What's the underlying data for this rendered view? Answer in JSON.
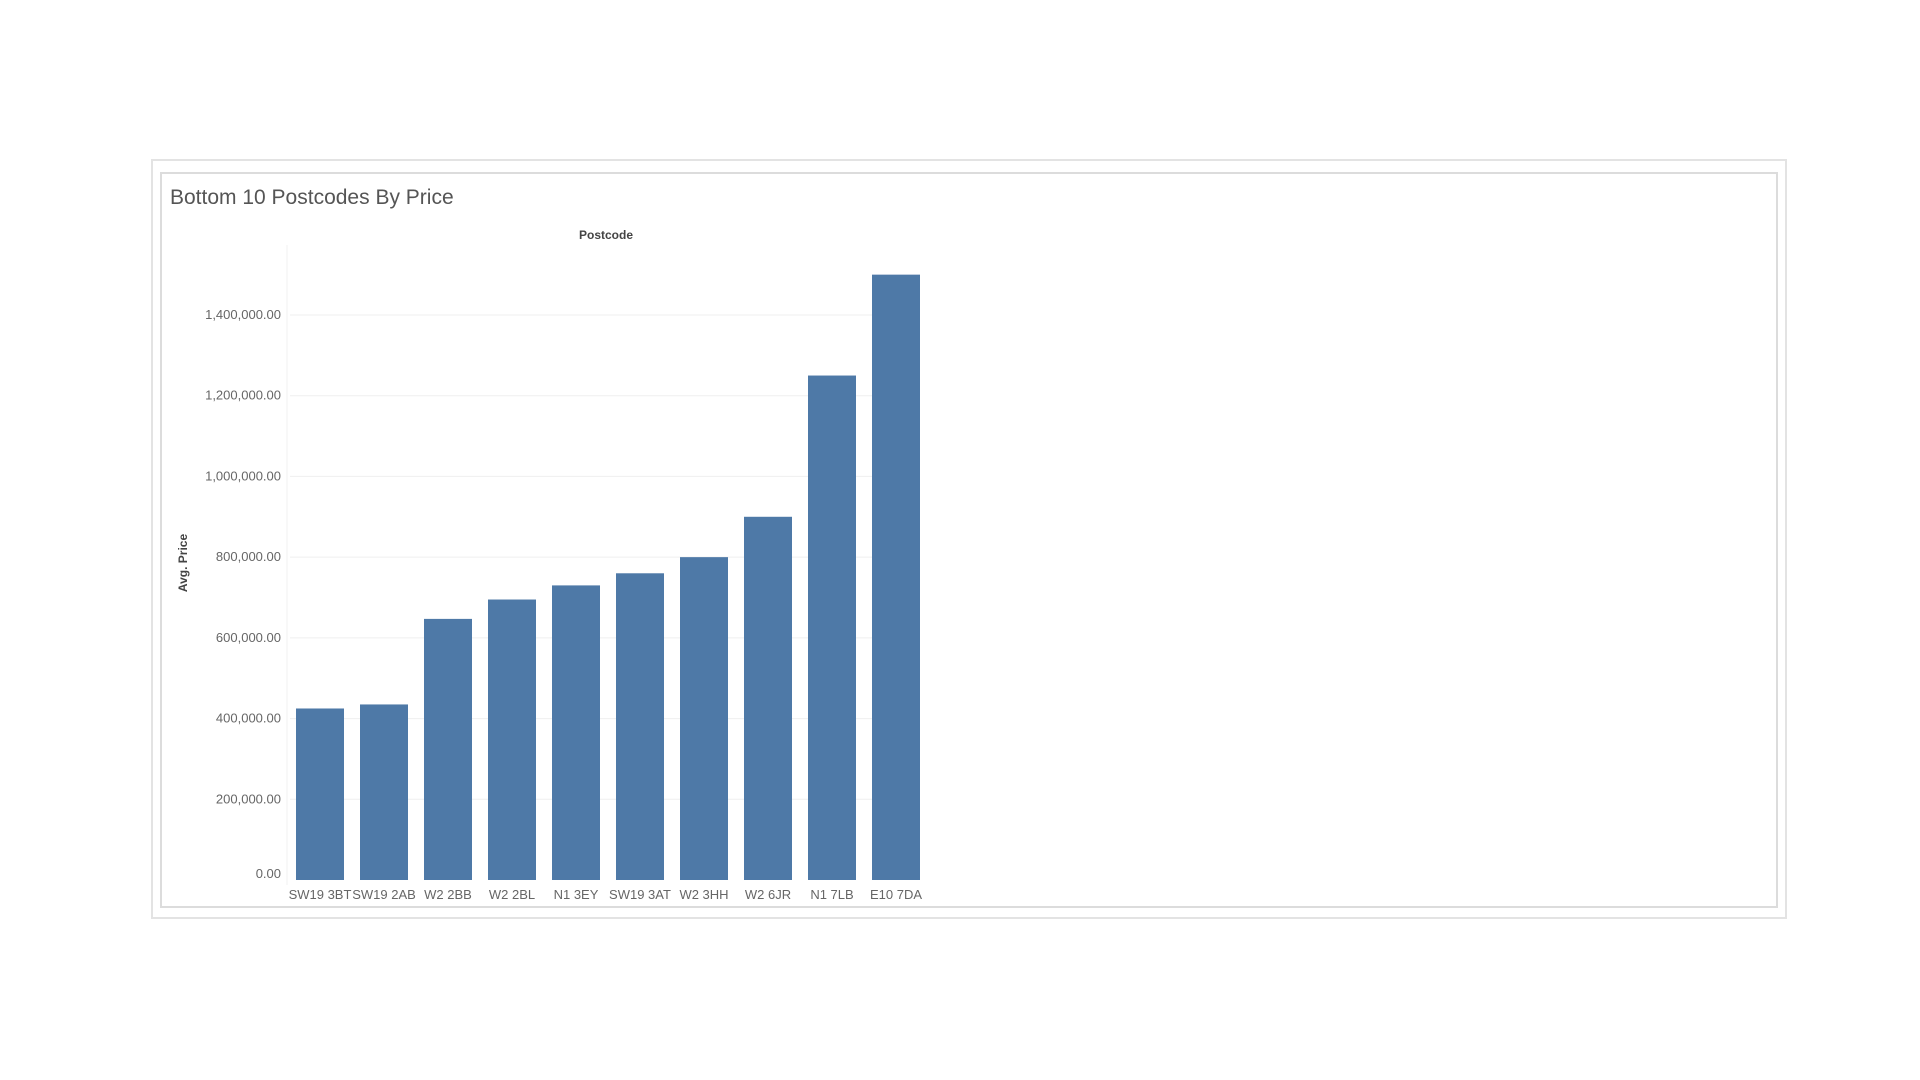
{
  "chart_data": {
    "type": "bar",
    "title": "Bottom 10 Postcodes By Price",
    "xlabel": "Postcode",
    "ylabel": "Avg. Price",
    "categories": [
      "SW19 3BT",
      "SW19 2AB",
      "W2 2BB",
      "W2 2BL",
      "N1 3EY",
      "SW19 3AT",
      "W2 3HH",
      "W2 6JR",
      "N1 7LB",
      "E10 7DA"
    ],
    "values": [
      425000,
      435000,
      647000,
      695000,
      730000,
      760000,
      800000,
      900000,
      1250000,
      1500000
    ],
    "ylim": [
      0,
      1500000
    ],
    "yticks": [
      0,
      200000,
      400000,
      600000,
      800000,
      1000000,
      1200000,
      1400000
    ],
    "ytick_labels": [
      "0.00",
      "200,000.00",
      "400,000.00",
      "600,000.00",
      "800,000.00",
      "1,000,000.00",
      "1,200,000.00",
      "1,400,000.00"
    ],
    "bar_color": "#4e79a7",
    "grid": true,
    "legend": "none"
  }
}
